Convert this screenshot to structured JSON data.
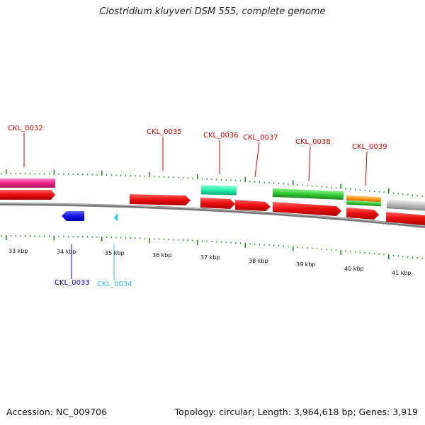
{
  "title": "Clostridium kluyveri DSM 555, complete genome",
  "footer": {
    "accession": "Accession: NC_009706",
    "summary": "Topology: circular; Length: 3,964,618 bp; Genes: 3,919"
  },
  "scale_labels": [
    "33 kbp",
    "34 kbp",
    "35 kbp",
    "36 kbp",
    "37 kbp",
    "38 kbp",
    "39 kbp",
    "40 kbp",
    "41 kbp"
  ],
  "gene_labels": [
    {
      "text": "CKL_0032",
      "color": "#cc0000"
    },
    {
      "text": "CKL_0033",
      "color": "#0000cc"
    },
    {
      "text": "CKL_0034",
      "color": "#33bbdd"
    },
    {
      "text": "CKL_0035",
      "color": "#cc0000"
    },
    {
      "text": "CKL_0036",
      "color": "#cc0000"
    },
    {
      "text": "CKL_0037",
      "color": "#cc0000"
    },
    {
      "text": "CKL_0038",
      "color": "#cc0000"
    },
    {
      "text": "CKL_0039",
      "color": "#cc0000"
    }
  ],
  "colors": {
    "gene_red": "#ee1111",
    "gene_blue": "#1111ee",
    "gene_cyan": "#22ccee",
    "feature_pink": "#ee2288",
    "feature_teal": "#22eeaa",
    "feature_green": "#33cc33",
    "feature_orange": "#ff9911",
    "feature_gray": "#bbbbbb",
    "backbone": "#888888",
    "tick_green": "#228822"
  }
}
